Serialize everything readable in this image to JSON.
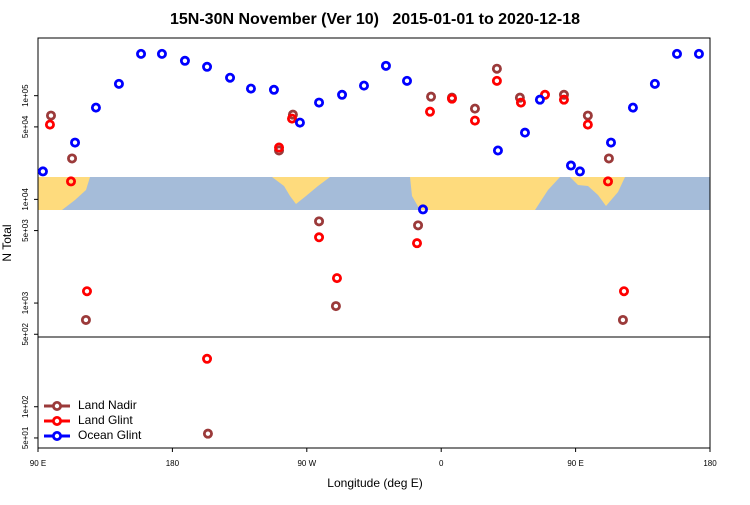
{
  "chart_data": {
    "type": "scatter",
    "title": "15N-30N November (Ver 10)   2015-01-01 to 2020-12-18",
    "x_label": "Longitude (deg E)",
    "y_label": "N Total",
    "y_log": true,
    "legend": "bottom left",
    "xlim": [
      90,
      540
    ],
    "xticks": [
      {
        "value": 90,
        "label": "90 E"
      },
      180,
      {
        "value": 270,
        "label": "90 W"
      },
      {
        "value": 360,
        "label": "0"
      },
      {
        "value": 450,
        "label": "90 E"
      },
      {
        "value": 540,
        "label": "180"
      }
    ],
    "ylim": [
      40,
      360000
    ],
    "yticks": [
      {
        "value": 50,
        "label": "5e+01"
      },
      {
        "value": 100,
        "label": "1e+02"
      },
      {
        "value": 500,
        "label": "5e+02"
      },
      {
        "value": 1000,
        "label": "1e+03"
      },
      {
        "value": 5000,
        "label": "5e+03"
      },
      {
        "value": 10000,
        "label": "1e+04"
      },
      {
        "value": 50000,
        "label": "5e+04"
      },
      {
        "value": 100000,
        "label": "1e+05"
      }
    ],
    "series": [
      {
        "name": "Land Nadir",
        "color": "#9b3a3a",
        "x": [
          98.7,
          112.8,
          122.1,
          251.4,
          260.7,
          278.2,
          289.5,
          344.5,
          353.2,
          367.2,
          382.6,
          397.3,
          412.7,
          442.2,
          458.2,
          472.3,
          481.7,
          203.8
        ],
        "values": [
          64300,
          24800,
          687,
          29600,
          65600,
          6140,
          935,
          5620,
          97800,
          95700,
          75000,
          182000,
          95700,
          102000,
          64300,
          24800,
          687,
          55
        ]
      },
      {
        "name": "Land Glint",
        "color": "#ff0000",
        "x": [
          98.0,
          112.1,
          122.8,
          251.4,
          260.1,
          278.2,
          290.2,
          343.8,
          352.5,
          367.2,
          382.6,
          397.3,
          413.4,
          429.5,
          442.2,
          458.2,
          471.7,
          482.4,
          203.2
        ],
        "values": [
          52600,
          14900,
          1300,
          31600,
          60100,
          4310,
          1740,
          3780,
          70100,
          93600,
          57500,
          139000,
          85800,
          102000,
          91500,
          52600,
          14900,
          1300,
          290
        ]
      },
      {
        "name": "Ocean Glint",
        "color": "#0000ff",
        "x": [
          93.3,
          114.8,
          128.8,
          144.2,
          159.0,
          173.0,
          188.4,
          203.2,
          218.6,
          232.6,
          248.0,
          265.4,
          278.2,
          293.6,
          308.3,
          323.0,
          337.1,
          347.8,
          398.0,
          416.1,
          426.1,
          446.9,
          452.9,
          473.7,
          488.4,
          503.1,
          517.9,
          532.6
        ],
        "values": [
          18600,
          35300,
          76700,
          130000,
          253000,
          253000,
          217000,
          190000,
          149000,
          117000,
          114000,
          55000,
          85800,
          102000,
          125000,
          194000,
          139000,
          8000,
          29600,
          44000,
          91500,
          21200,
          18600,
          35300,
          76700,
          130000,
          253000,
          253000
        ]
      }
    ]
  }
}
